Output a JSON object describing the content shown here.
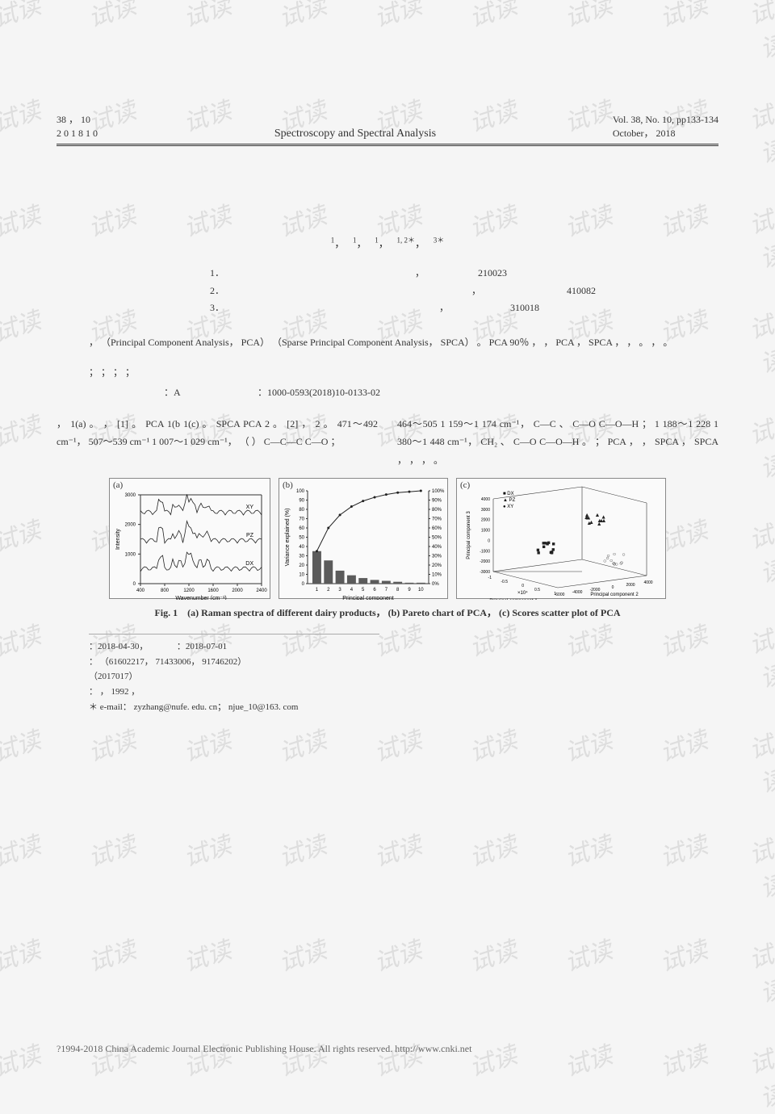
{
  "header": {
    "vol_line1": "38 ， 10",
    "vol_line2": "2 0 1 8   1 0",
    "journal": "Spectroscopy and Spectral Analysis",
    "right_line1": "Vol. 38, No. 10, pp133-134",
    "right_line2": "October， 2018"
  },
  "authors": {
    "a1": "1",
    "a2": "1",
    "a3": "1",
    "a4": "1, 2＊",
    "a5": "3＊"
  },
  "affil": {
    "l1": "1．",
    "l1b": "，",
    "l1c": "210023",
    "l2": "2．",
    "l2b": "，",
    "l2c": "410082",
    "l3": "3．",
    "l3b": "，",
    "l3c": "310018"
  },
  "abstract": {
    "text": "，                                                      （Principal Component Analysis， PCA）                              （Sparse Principal Component Analysis， SPCA）       。 PCA                                                       90％      ，                                              ，           PCA                          ，         SPCA                          ，                                              ，                                      。                ，                                                                                                        。"
  },
  "keywords": "；        ；        ；        ；",
  "class": {
    "label1": "：A",
    "label2": "：1000-0593(2018)10-0133-02"
  },
  "body": {
    "left": "，       1(a)   。                                                   ，                                     [1] 。 PCA                                              1(b        1(c)    。 SPCA         PCA                                                   2        。                                                [2] ，       2                                                   。                     471～492 cm⁻¹， 507～539 cm⁻¹      1 007～1 029 cm⁻¹，                        （        ）  C—C—C              C—O             ；",
    "right": "464～505      1 159～1 174 cm⁻¹，                      C—C           、 C—O                      C—O—H             ；                                                                     1 188～1 228        1 380～1 448 cm⁻¹，                           CH₂           、      C—O                  C—O—H           。              ； PCA                                                ，                           ，        SPCA                                                              ，        SPCA                                                 ，                                          ，                           ，                                                                   。"
  },
  "figures": {
    "a": {
      "label": "(a)",
      "xaxis": "Wavenumber (cm⁻¹)",
      "yaxis": "Intensity",
      "xticks": [
        "400",
        "800",
        "1200",
        "1600",
        "2000",
        "2400"
      ],
      "yticks": [
        "0",
        "1000",
        "2000",
        "3000"
      ],
      "series_labels": [
        "DX",
        "PZ",
        "XY"
      ],
      "line_color": "#222222",
      "bg": "#fafafa",
      "axis_color": "#333333"
    },
    "b": {
      "label": "(b)",
      "xaxis": "Principal component",
      "yaxis": "Variance explained (%)",
      "xticks": [
        "1",
        "2",
        "3",
        "4",
        "5",
        "6",
        "7",
        "8",
        "9",
        "10"
      ],
      "left_ticks": [
        "0",
        "10",
        "20",
        "30",
        "40",
        "50",
        "60",
        "70",
        "80",
        "90",
        "100"
      ],
      "right_ticks": [
        "0%",
        "10%",
        "20%",
        "30%",
        "40%",
        "50%",
        "60%",
        "70%",
        "80%",
        "90%",
        "100%"
      ],
      "bar_values": [
        35,
        25,
        14,
        9,
        6,
        4,
        3,
        2,
        1,
        1
      ],
      "cum_values": [
        35,
        60,
        74,
        83,
        89,
        93,
        96,
        98,
        99,
        100
      ],
      "bar_color": "#5b5b5b",
      "line_color": "#222222",
      "bg": "#fafafa"
    },
    "c": {
      "label": "(c)",
      "xaxis": "Principal component 2",
      "yaxis": "Principal component 3",
      "zaxis": "Principal component 1",
      "legend": [
        "DX",
        "PZ",
        "XY"
      ],
      "legend_markers": [
        "■",
        "▲",
        "●"
      ],
      "x_ticks": [
        "-6000",
        "-4000",
        "-2000",
        "0",
        "2000",
        "4000"
      ],
      "y_ticks": [
        "-3000",
        "-2000",
        "-1000",
        "0",
        "1000",
        "2000",
        "3000",
        "4000"
      ],
      "z_ticks": [
        "-1",
        "-0.5",
        "0",
        "0.5",
        "1"
      ],
      "z_mult": "×10⁴",
      "marker_color": "#222222",
      "bg": "#fafafa"
    },
    "caption": "Fig. 1　(a) Raman spectra of different dairy products， (b) Pareto chart of PCA， (c) Scores scatter plot of PCA"
  },
  "footnotes": {
    "l1a": "：2018-04-30，",
    "l1b": "：2018-07-01",
    "l2": "：                      （61602217， 71433006， 91746202）",
    "l3": "（2017017）",
    "l4": "：        ， 1992        ，",
    "l5": "＊                     e-mail： zyzhang@nufe. edu. cn； njue_10@163. com"
  },
  "footer": "?1994-2018 China Academic Journal Electronic Publishing House. All rights reserved.    http://www.cnki.net",
  "watermark": "试读"
}
